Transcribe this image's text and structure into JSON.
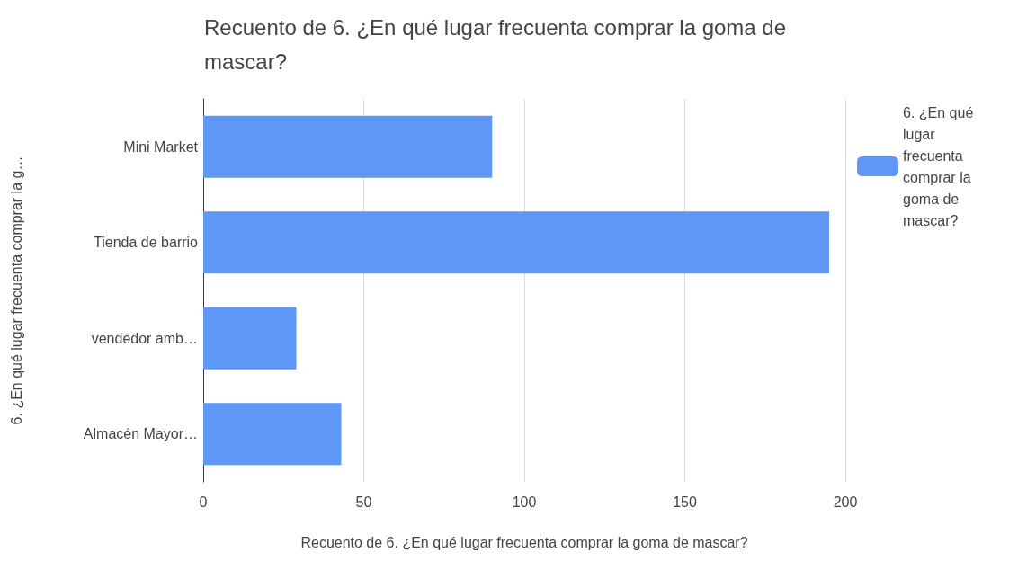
{
  "chart_data": {
    "type": "bar",
    "orientation": "horizontal",
    "title": "Recuento de 6. ¿En qué lugar frecuenta comprar la goma de mascar?",
    "xlabel": "Recuento de 6. ¿En qué lugar frecuenta comprar la goma de mascar?",
    "ylabel": "6. ¿En qué lugar frecuenta comprar la g…",
    "categories": [
      "Mini Market",
      "Tienda de barrio",
      "vendedor amb…",
      "Almacén Mayor…"
    ],
    "series": [
      {
        "name": "6. ¿En qué lugar frecuenta comprar la goma de mascar?",
        "color": "#5e97f6",
        "values": [
          90,
          195,
          29,
          43
        ]
      }
    ],
    "xlim": [
      0,
      200
    ],
    "xticks": [
      0,
      50,
      100,
      150,
      200
    ],
    "grid": "x",
    "legend": "top right"
  }
}
